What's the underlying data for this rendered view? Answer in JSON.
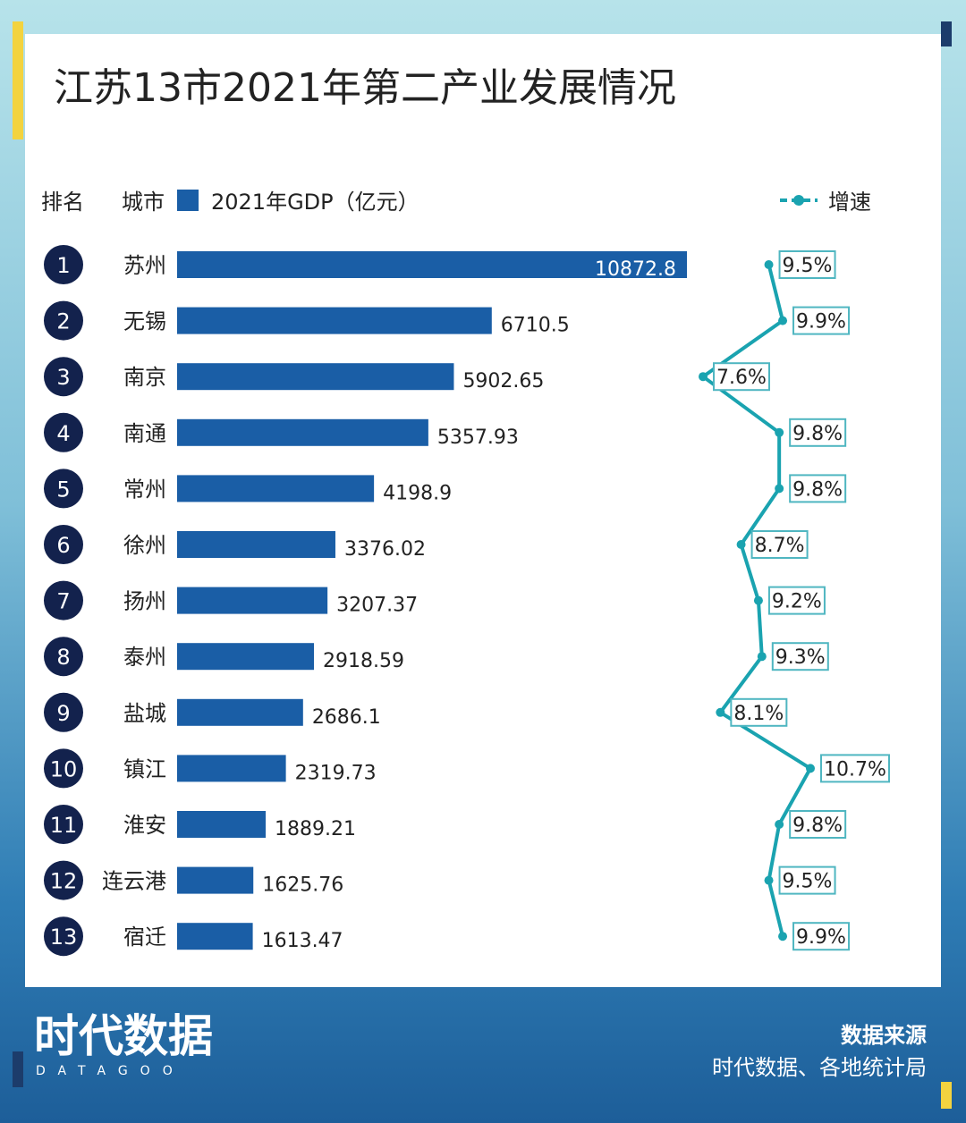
{
  "colors": {
    "bar": "#1a5ea6",
    "rank_circle": "#13224d",
    "growth_line": "#1aa3b0",
    "growth_box_border": "#4fb6c1"
  },
  "title": "江苏13市2021年第二产业发展情况",
  "headers": {
    "rank": "排名",
    "city": "城市",
    "gdp": "2021年GDP（亿元）",
    "growth": "增速"
  },
  "chart_data": {
    "type": "bar",
    "title": "江苏13市2021年第二产业发展情况",
    "categories": [
      "苏州",
      "无锡",
      "南京",
      "南通",
      "常州",
      "徐州",
      "扬州",
      "泰州",
      "盐城",
      "镇江",
      "淮安",
      "连云港",
      "宿迁"
    ],
    "ranks": [
      "1",
      "2",
      "3",
      "4",
      "5",
      "6",
      "7",
      "8",
      "9",
      "10",
      "11",
      "12",
      "13"
    ],
    "series": [
      {
        "name": "2021年GDP（亿元）",
        "values": [
          10872.8,
          6710.5,
          5902.65,
          5357.93,
          4198.9,
          3376.02,
          3207.37,
          2918.59,
          2686.1,
          2319.73,
          1889.21,
          1625.76,
          1613.47
        ]
      },
      {
        "name": "增速",
        "values": [
          9.5,
          9.9,
          7.6,
          9.8,
          9.8,
          8.7,
          9.2,
          9.3,
          8.1,
          10.7,
          9.8,
          9.5,
          9.9
        ]
      }
    ],
    "value_labels": [
      "10872.8",
      "6710.5",
      "5902.65",
      "5357.93",
      "4198.9",
      "3376.02",
      "3207.37",
      "2918.59",
      "2686.1",
      "2319.73",
      "1889.21",
      "1625.76",
      "1613.47"
    ],
    "growth_labels": [
      "9.5%",
      "9.9%",
      "7.6%",
      "9.8%",
      "9.8%",
      "8.7%",
      "9.2%",
      "9.3%",
      "8.1%",
      "10.7%",
      "9.8%",
      "9.5%",
      "9.9%"
    ]
  },
  "footer": {
    "logo": "时代数据",
    "logo_sub": "DATAGOO",
    "source_title": "数据来源",
    "source_text": "时代数据、各地统计局"
  }
}
